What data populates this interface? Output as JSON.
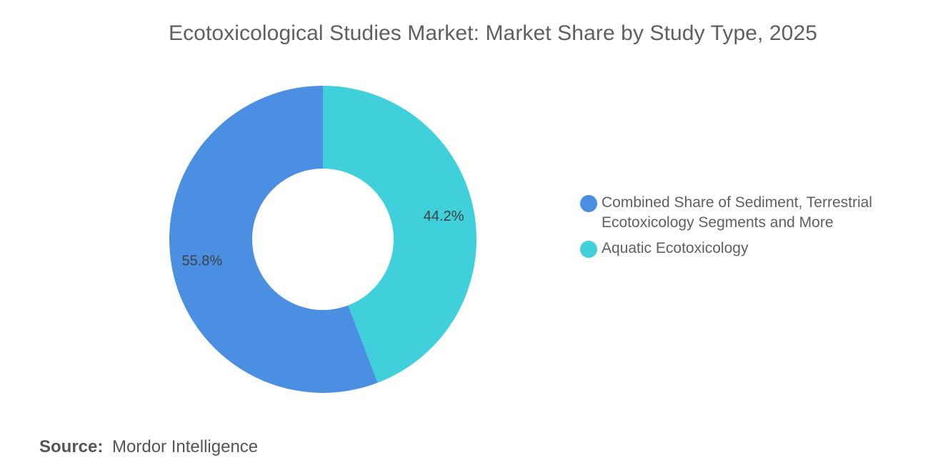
{
  "title": "Ecotoxicological Studies Market: Market Share by Study Type, 2025",
  "source": {
    "label": "Source:",
    "value": "Mordor Intelligence"
  },
  "chart_data": {
    "type": "pie",
    "variant": "donut",
    "title": "Ecotoxicological Studies Market: Market Share by Study Type, 2025",
    "legend_position": "right",
    "slices": [
      {
        "name": "Aquatic Ecotoxicology",
        "value": 44.2,
        "label": "44.2%",
        "color": "#40d0db"
      },
      {
        "name": "Combined Share of Sediment, Terrestrial Ecotoxicology Segments and More",
        "value": 55.8,
        "label": "55.8%",
        "color": "#4a8fe2"
      }
    ],
    "legend": [
      {
        "name": "Combined Share of Sediment, Terrestrial Ecotoxicology Segments and More",
        "color": "#4a8fe2"
      },
      {
        "name": "Aquatic Ecotoxicology",
        "color": "#40d0db"
      }
    ]
  }
}
